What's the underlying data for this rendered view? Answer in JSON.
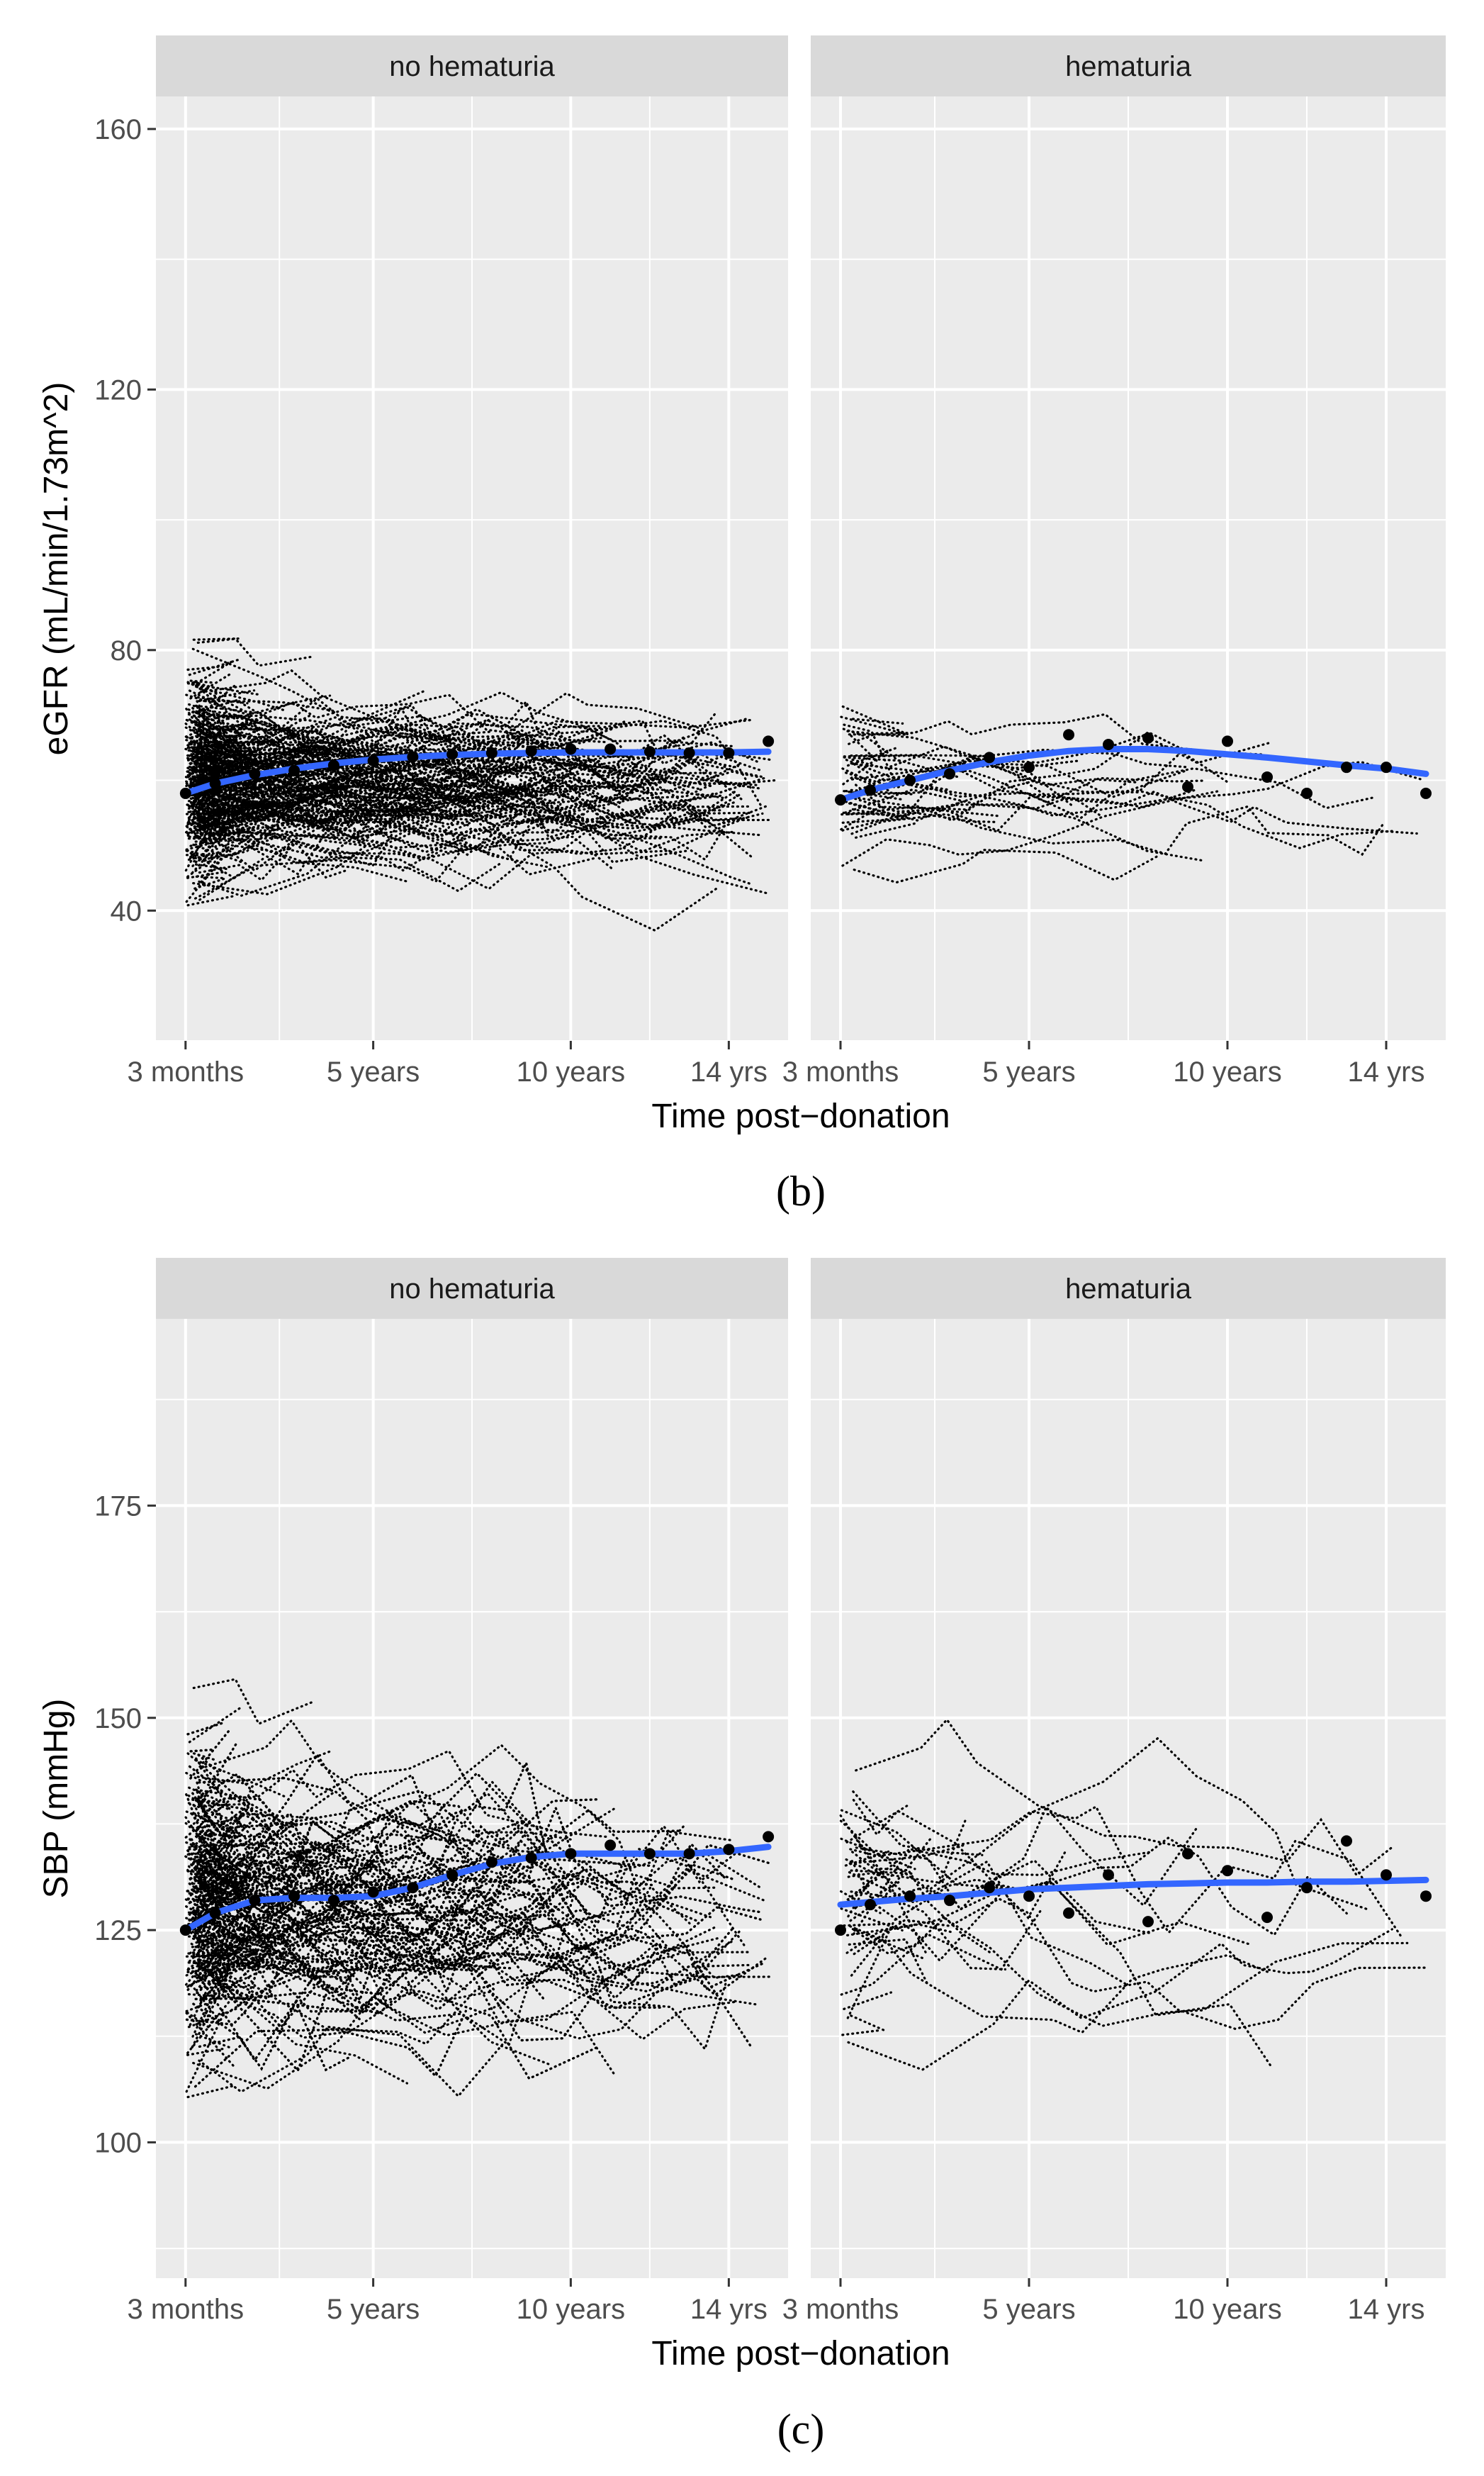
{
  "figure": {
    "panel_labels": [
      "(b)",
      "(c)"
    ]
  },
  "colors": {
    "panel_background": "#ebebeb",
    "strip_background": "#d9d9d9",
    "gridline": "#ffffff",
    "trajectory": "#000000",
    "smooth": "#3366ff",
    "mean_point": "#000000"
  },
  "chart_data": [
    {
      "type": "line",
      "panel_letter": "(b)",
      "facets": [
        "no hematuria",
        "hematuria"
      ],
      "xlabel": "Time post−donation",
      "ylabel": "eGFR (mL/min/1.73m^2)",
      "x_tick_labels": [
        "3 months",
        "5 years",
        "10 years",
        "14 yrs"
      ],
      "x_tick_values": [
        0.25,
        5,
        10,
        14
      ],
      "xlim": [
        -0.5,
        15.5
      ],
      "yticks": [
        40,
        80,
        120,
        160
      ],
      "ylim": [
        20,
        165
      ],
      "grid": true,
      "series": [
        {
          "facet": "no hematuria",
          "smooth": {
            "x": [
              0.25,
              1,
              2,
              3,
              4,
              5,
              6,
              7,
              8,
              9,
              10,
              11,
              12,
              13,
              14,
              15
            ],
            "y": [
              58,
              59.5,
              60.8,
              61.8,
              62.6,
              63.2,
              63.6,
              63.9,
              64.1,
              64.2,
              64.3,
              64.3,
              64.3,
              64.3,
              64.3,
              64.4
            ]
          },
          "means": {
            "x": [
              0.25,
              1,
              2,
              3,
              4,
              5,
              6,
              7,
              8,
              9,
              10,
              11,
              12,
              13,
              14,
              15
            ],
            "y": [
              58,
              59.5,
              61,
              61.5,
              62.3,
              63,
              63.6,
              64,
              64.2,
              64.5,
              64.8,
              64.8,
              64.4,
              64.2,
              64.2,
              66
            ]
          }
        },
        {
          "facet": "hematuria",
          "smooth": {
            "x": [
              0.25,
              1,
              2,
              3,
              4,
              5,
              6,
              7,
              8,
              9,
              10,
              11,
              12,
              13,
              14,
              15
            ],
            "y": [
              57,
              58.5,
              60,
              61.5,
              62.8,
              63.8,
              64.5,
              64.8,
              64.8,
              64.5,
              64,
              63.5,
              62.9,
              62.3,
              61.8,
              61
            ]
          },
          "means": {
            "x": [
              0.25,
              1,
              2,
              3,
              4,
              5,
              6,
              7,
              8,
              9,
              10,
              11,
              12,
              13,
              14,
              15
            ],
            "y": [
              57,
              58.5,
              60,
              61,
              63.5,
              62,
              67,
              65.5,
              66.5,
              59,
              66,
              60.5,
              58,
              62,
              62,
              58
            ]
          }
        }
      ]
    },
    {
      "type": "line",
      "panel_letter": "(c)",
      "facets": [
        "no hematuria",
        "hematuria"
      ],
      "xlabel": "Time post−donation",
      "ylabel": "SBP (mmHg)",
      "x_tick_labels": [
        "3 months",
        "5 years",
        "10 years",
        "14 yrs"
      ],
      "x_tick_values": [
        0.25,
        5,
        10,
        14
      ],
      "xlim": [
        -0.5,
        15.5
      ],
      "yticks": [
        100,
        125,
        150,
        175
      ],
      "ylim": [
        84,
        197
      ],
      "grid": true,
      "series": [
        {
          "facet": "no hematuria",
          "smooth": {
            "x": [
              0.25,
              1,
              2,
              3,
              4,
              5,
              6,
              7,
              8,
              9,
              10,
              11,
              12,
              13,
              14,
              15
            ],
            "y": [
              125,
              127,
              128.5,
              128.8,
              128.8,
              129,
              130,
              131.5,
              132.8,
              133.6,
              134,
              134,
              134,
              134,
              134.3,
              134.8
            ]
          },
          "means": {
            "x": [
              0.25,
              1,
              2,
              3,
              4,
              5,
              6,
              7,
              8,
              9,
              10,
              11,
              12,
              13,
              14,
              15
            ],
            "y": [
              125,
              127,
              128.5,
              129,
              128.5,
              129.5,
              130,
              131.5,
              133,
              133.5,
              134,
              135,
              134,
              134,
              134.5,
              136
            ]
          }
        },
        {
          "facet": "hematuria",
          "smooth": {
            "x": [
              0.25,
              1,
              2,
              3,
              4,
              5,
              6,
              7,
              8,
              9,
              10,
              11,
              12,
              13,
              14,
              15
            ],
            "y": [
              128,
              128.3,
              128.7,
              129,
              129.4,
              129.8,
              130,
              130.2,
              130.4,
              130.5,
              130.6,
              130.6,
              130.7,
              130.7,
              130.8,
              130.9
            ]
          },
          "means": {
            "x": [
              0.25,
              1,
              2,
              3,
              4,
              5,
              6,
              7,
              8,
              9,
              10,
              11,
              12,
              13,
              14,
              15
            ],
            "y": [
              125,
              128,
              129,
              128.5,
              130,
              129,
              127,
              131.5,
              126,
              134,
              132,
              126.5,
              130,
              135.5,
              131.5,
              129
            ]
          }
        }
      ]
    }
  ]
}
